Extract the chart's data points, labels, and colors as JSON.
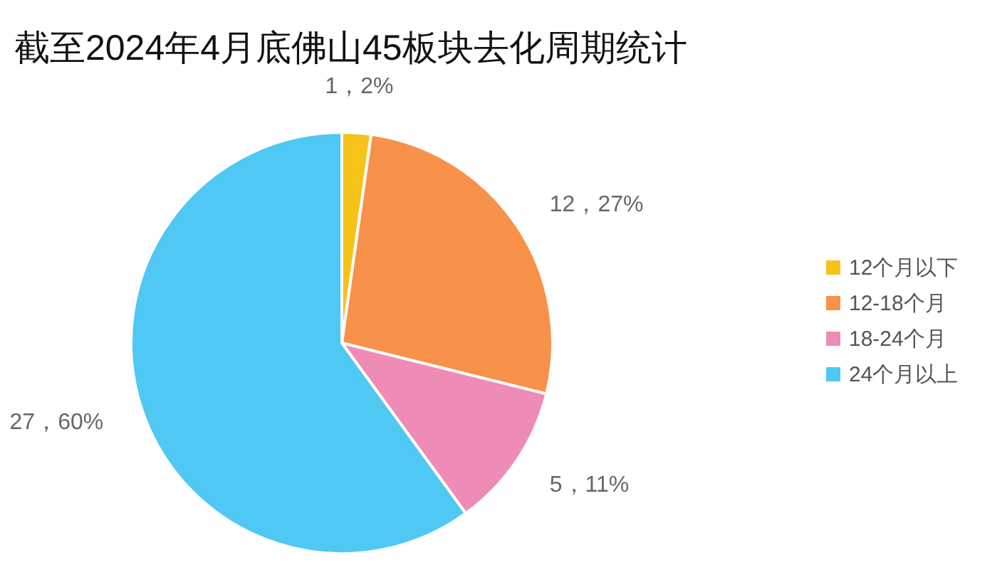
{
  "chart_data": {
    "type": "pie",
    "title": "截至2024年4月底佛山45板块去化周期统计",
    "categories": [
      "12个月以下",
      "12-18个月",
      "18-24个月",
      "24个月以上"
    ],
    "values": [
      1,
      12,
      5,
      27
    ],
    "value_labels": [
      "1，2%",
      "12，27%",
      "5，11%",
      "27，60%"
    ],
    "colors": [
      "#f7c21a",
      "#f8914a",
      "#ef8bb7",
      "#4fc8f3"
    ],
    "legend": "right"
  }
}
